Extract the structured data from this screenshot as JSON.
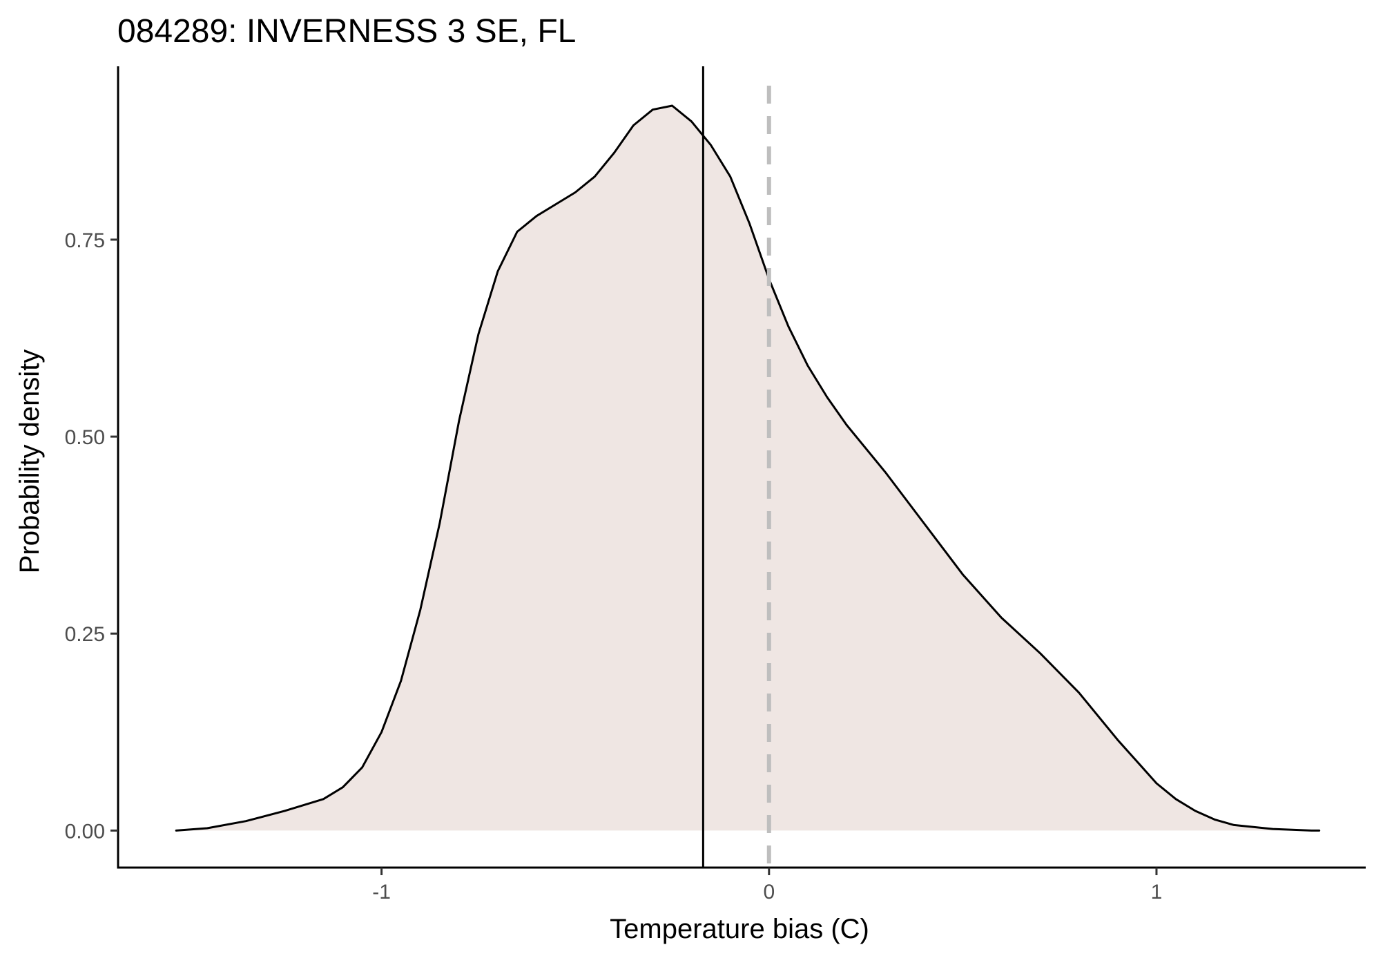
{
  "chart_data": {
    "type": "area",
    "title": "084289: INVERNESS 3 SE, FL",
    "xlabel": "Temperature bias (C)",
    "ylabel": "Probability density",
    "xlim": [
      -1.68,
      1.54
    ],
    "ylim": [
      -0.047,
      0.97
    ],
    "x_ticks": [
      -1,
      0,
      1
    ],
    "x_tick_labels": [
      "-1",
      "0",
      "1"
    ],
    "y_ticks": [
      0,
      0.25,
      0.5,
      0.75
    ],
    "y_tick_labels": [
      "0.00",
      "0.25",
      "0.50",
      "0.75"
    ],
    "grid": false,
    "fill_color": "#efe6e3",
    "line_color": "#000000",
    "mean_line_x": -0.17,
    "reference_line_x": 0,
    "reference_line_color": "#bebebe",
    "series": [
      {
        "x": [
          -1.53,
          -1.45,
          -1.35,
          -1.25,
          -1.15,
          -1.1,
          -1.05,
          -1.0,
          -0.95,
          -0.9,
          -0.85,
          -0.8,
          -0.75,
          -0.7,
          -0.65,
          -0.6,
          -0.55,
          -0.5,
          -0.45,
          -0.4,
          -0.35,
          -0.3,
          -0.25,
          -0.2,
          -0.15,
          -0.1,
          -0.05,
          0.0,
          0.05,
          0.1,
          0.15,
          0.2,
          0.3,
          0.4,
          0.5,
          0.6,
          0.7,
          0.8,
          0.9,
          1.0,
          1.05,
          1.1,
          1.15,
          1.2,
          1.3,
          1.4,
          1.42
        ],
        "y": [
          0.0,
          0.003,
          0.012,
          0.025,
          0.04,
          0.055,
          0.08,
          0.125,
          0.19,
          0.28,
          0.39,
          0.52,
          0.63,
          0.71,
          0.76,
          0.78,
          0.795,
          0.81,
          0.83,
          0.86,
          0.895,
          0.915,
          0.92,
          0.9,
          0.87,
          0.83,
          0.77,
          0.7,
          0.64,
          0.59,
          0.55,
          0.515,
          0.455,
          0.39,
          0.325,
          0.27,
          0.225,
          0.175,
          0.115,
          0.06,
          0.04,
          0.025,
          0.014,
          0.007,
          0.002,
          0.0,
          0.0
        ]
      }
    ]
  }
}
